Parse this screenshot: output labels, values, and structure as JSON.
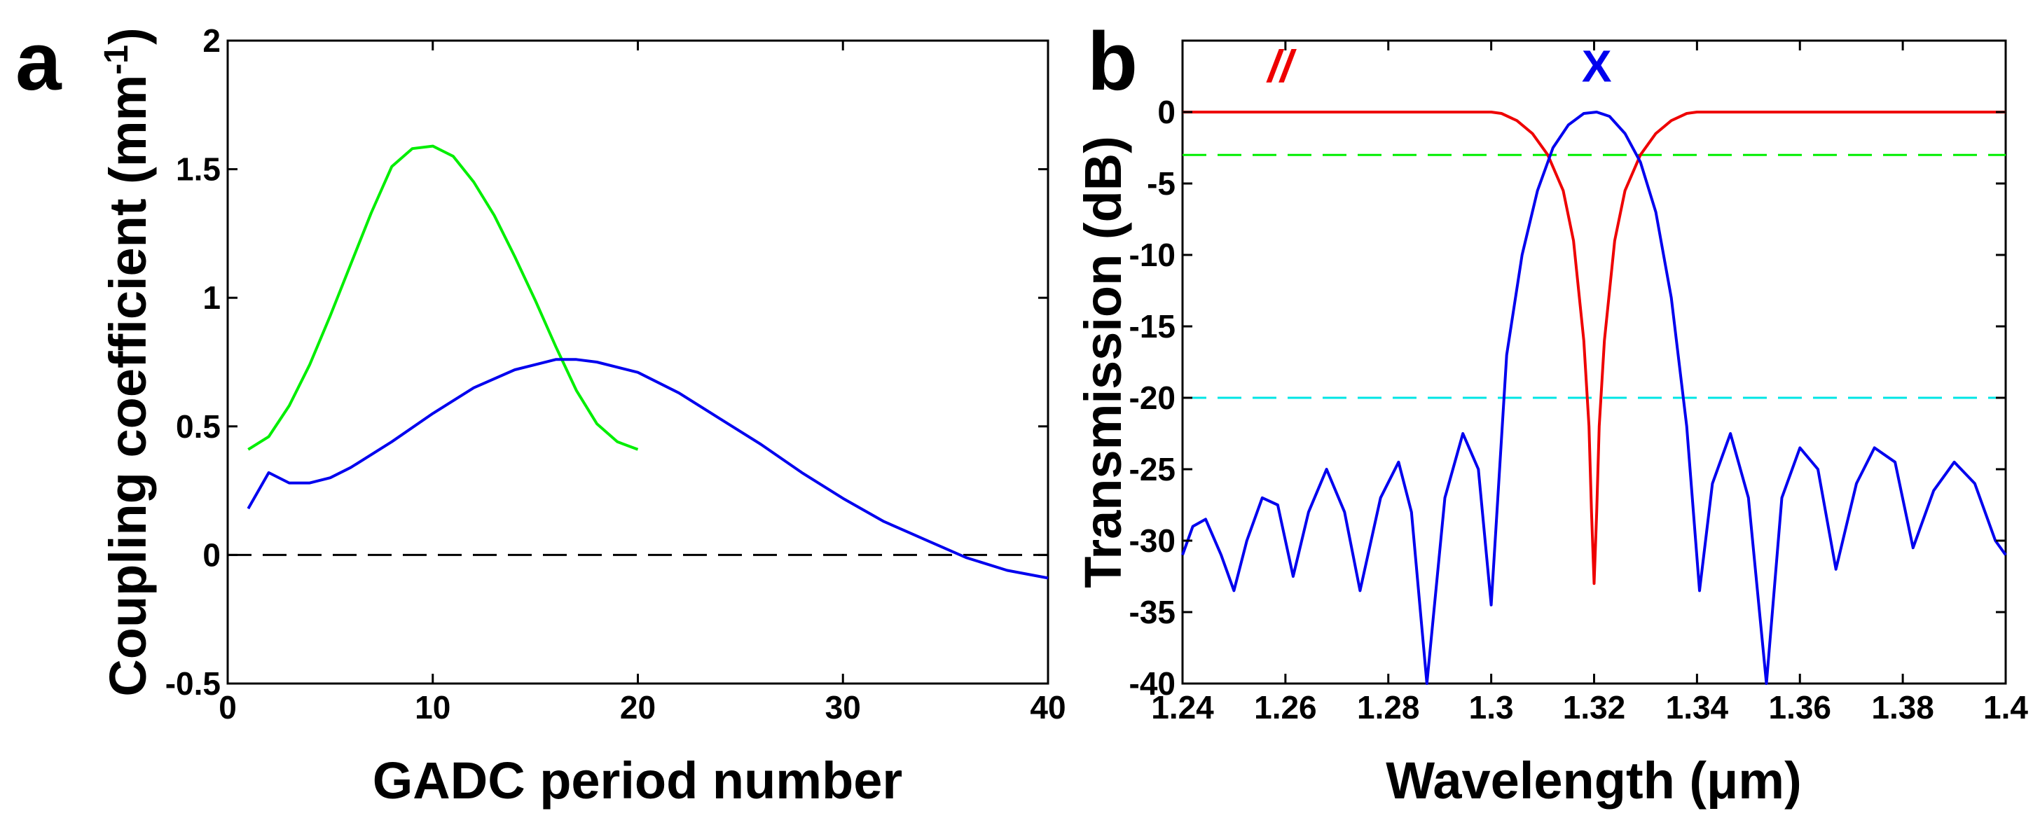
{
  "chart_data": [
    {
      "panel": "a",
      "type": "line",
      "xlabel": "GADC period number",
      "ylabel": "Coupling coefficient (mm",
      "ylabel_sup": "-1",
      "ylabel_end": ")",
      "xlim": [
        0,
        40
      ],
      "ylim": [
        -0.5,
        2
      ],
      "xticks": [
        0,
        10,
        20,
        30,
        40
      ],
      "yticks": [
        -0.5,
        0,
        0.5,
        1,
        1.5,
        2
      ],
      "ytick_labels": [
        "-0.5",
        "0",
        "0.5",
        "1",
        "1.5",
        "2"
      ],
      "series": [
        {
          "name": "green",
          "color": "#00ee00",
          "x": [
            1,
            2,
            3,
            4,
            5,
            6,
            7,
            8,
            9,
            10,
            11,
            12,
            13,
            14,
            15,
            16,
            17,
            18,
            19,
            20
          ],
          "y": [
            0.41,
            0.46,
            0.58,
            0.74,
            0.93,
            1.13,
            1.33,
            1.51,
            1.58,
            1.59,
            1.55,
            1.45,
            1.32,
            1.16,
            0.99,
            0.81,
            0.64,
            0.51,
            0.44,
            0.41
          ]
        },
        {
          "name": "blue",
          "color": "#0000ee",
          "x": [
            1,
            2,
            3,
            4,
            5,
            6,
            8,
            10,
            12,
            14,
            16,
            17,
            18,
            20,
            22,
            24,
            26,
            28,
            30,
            32,
            34,
            36,
            38,
            40
          ],
          "y": [
            0.18,
            0.32,
            0.28,
            0.28,
            0.3,
            0.34,
            0.44,
            0.55,
            0.65,
            0.72,
            0.76,
            0.76,
            0.75,
            0.71,
            0.63,
            0.53,
            0.43,
            0.32,
            0.22,
            0.13,
            0.06,
            -0.01,
            -0.06,
            -0.09
          ]
        }
      ],
      "reference_lines": [
        {
          "name": "zero-line",
          "y": 0,
          "color": "#000000"
        }
      ]
    },
    {
      "panel": "b",
      "type": "line",
      "xlabel": "Wavelength (μm)",
      "ylabel": "Transmission (dB)",
      "xlim": [
        1.24,
        1.4
      ],
      "ylim": [
        -40,
        5
      ],
      "xticks": [
        1.24,
        1.26,
        1.28,
        1.3,
        1.32,
        1.34,
        1.36,
        1.38,
        1.4
      ],
      "xtick_labels": [
        "1.24",
        "1.26",
        "1.28",
        "1.3",
        "1.32",
        "1.34",
        "1.36",
        "1.38",
        "1.4"
      ],
      "yticks": [
        0,
        -5,
        -10,
        -15,
        -20,
        -25,
        -30,
        -35,
        -40
      ],
      "ytick_labels": [
        "0",
        "-5",
        "-10",
        "-15",
        "-20",
        "-25",
        "-30",
        "-35",
        "-40"
      ],
      "series": [
        {
          "name": "//",
          "color": "#ee0000",
          "x": [
            1.24,
            1.3,
            1.302,
            1.305,
            1.308,
            1.311,
            1.314,
            1.316,
            1.318,
            1.319,
            1.3195,
            1.32,
            1.3205,
            1.321,
            1.322,
            1.324,
            1.326,
            1.329,
            1.332,
            1.335,
            1.338,
            1.34,
            1.4
          ],
          "y": [
            0,
            0,
            -0.1,
            -0.6,
            -1.5,
            -3,
            -5.5,
            -9,
            -16,
            -22,
            -28,
            -33,
            -28,
            -22,
            -16,
            -9,
            -5.5,
            -3,
            -1.5,
            -0.6,
            -0.1,
            0,
            0
          ]
        },
        {
          "name": "X",
          "color": "#0000ee",
          "x": [
            1.24,
            1.242,
            1.2445,
            1.2475,
            1.25,
            1.2525,
            1.2555,
            1.2585,
            1.2615,
            1.2645,
            1.268,
            1.2715,
            1.2745,
            1.2785,
            1.282,
            1.2845,
            1.2875,
            1.291,
            1.2945,
            1.2975,
            1.3,
            1.303,
            1.306,
            1.309,
            1.312,
            1.315,
            1.318,
            1.3205,
            1.323,
            1.326,
            1.329,
            1.332,
            1.335,
            1.338,
            1.3405,
            1.343,
            1.3465,
            1.35,
            1.3535,
            1.3565,
            1.36,
            1.3635,
            1.367,
            1.371,
            1.3745,
            1.3785,
            1.382,
            1.386,
            1.39,
            1.394,
            1.398,
            1.4
          ],
          "y": [
            -31,
            -29,
            -28.5,
            -31,
            -33.5,
            -30,
            -27,
            -27.5,
            -32.5,
            -28,
            -25,
            -28,
            -33.5,
            -27,
            -24.5,
            -28,
            -40,
            -27,
            -22.5,
            -25,
            -34.5,
            -17,
            -10,
            -5.5,
            -2.5,
            -0.9,
            -0.1,
            0,
            -0.3,
            -1.5,
            -3.5,
            -7,
            -13,
            -22,
            -33.5,
            -26,
            -22.5,
            -27,
            -40,
            -27,
            -23.5,
            -25,
            -32,
            -26,
            -23.5,
            -24.5,
            -30.5,
            -26.5,
            -24.5,
            -26,
            -30,
            -31
          ]
        }
      ],
      "reference_lines": [
        {
          "name": "-3dB-line",
          "y": -3,
          "color": "#00ee00"
        },
        {
          "name": "-20dB-line",
          "y": -20,
          "color": "#00e5e5"
        }
      ],
      "annotations": [
        {
          "name": "parallel-label",
          "text": "//",
          "x": 1.259,
          "y": 3.2,
          "color": "#ee0000"
        },
        {
          "name": "cross-label",
          "text": "X",
          "x": 1.3205,
          "y": 3.2,
          "color": "#0000ee"
        }
      ]
    }
  ],
  "panel_labels": {
    "a": "a",
    "b": "b"
  }
}
